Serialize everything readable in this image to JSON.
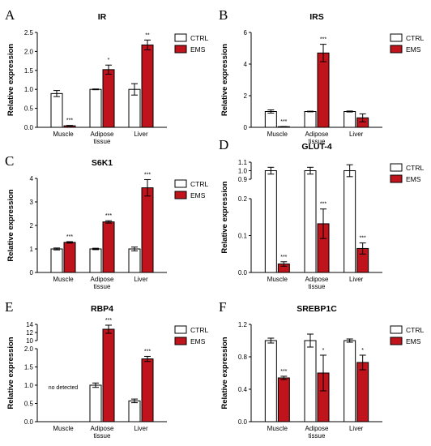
{
  "colors": {
    "ctrl": "#ffffff",
    "ems": "#c0141c",
    "axis": "#000000"
  },
  "chart_data": [
    {
      "panel": "A",
      "title": "IR",
      "type": "bar",
      "ylabel": "Relative expression",
      "categories": [
        "Muscle",
        "Adipose tissue",
        "Liver"
      ],
      "ylim": [
        0,
        2.5
      ],
      "yticks": [
        "0.0",
        "0.5",
        "1.0",
        "1.5",
        "2.0",
        "2.5"
      ],
      "legend": [
        "CTRL",
        "EMS"
      ],
      "series": [
        {
          "name": "CTRL",
          "values": [
            0.89,
            1.0,
            1.0
          ],
          "err": [
            0.08,
            0.01,
            0.15
          ]
        },
        {
          "name": "EMS",
          "values": [
            0.04,
            1.52,
            2.17
          ],
          "err": [
            0.01,
            0.12,
            0.13
          ]
        }
      ],
      "significance": [
        "***",
        "*",
        "**"
      ]
    },
    {
      "panel": "B",
      "title": "IRS",
      "type": "bar",
      "ylabel": "Relative expression",
      "categories": [
        "Muscle",
        "Adipose tissue",
        "Liver"
      ],
      "ylim": [
        0,
        6
      ],
      "yticks": [
        "0",
        "2",
        "4",
        "6"
      ],
      "legend": [
        "CTRL",
        "EMS"
      ],
      "series": [
        {
          "name": "CTRL",
          "values": [
            1.0,
            1.0,
            1.0
          ],
          "err": [
            0.1,
            0.02,
            0.03
          ]
        },
        {
          "name": "EMS",
          "values": [
            0.04,
            4.7,
            0.6
          ],
          "err": [
            0.01,
            0.55,
            0.25
          ]
        }
      ],
      "significance": [
        "***",
        "***",
        ""
      ]
    },
    {
      "panel": "C",
      "title": "S6K1",
      "type": "bar",
      "ylabel": "Relative expression",
      "categories": [
        "Muscle",
        "Adipose tissue",
        "Liver"
      ],
      "ylim": [
        0,
        4
      ],
      "yticks": [
        "0",
        "1",
        "2",
        "3",
        "4"
      ],
      "legend": [
        "CTRL",
        "EMS"
      ],
      "series": [
        {
          "name": "CTRL",
          "values": [
            1.0,
            1.0,
            1.0
          ],
          "err": [
            0.04,
            0.03,
            0.08
          ]
        },
        {
          "name": "EMS",
          "values": [
            1.28,
            2.15,
            3.6
          ],
          "err": [
            0.03,
            0.05,
            0.35
          ]
        }
      ],
      "significance": [
        "***",
        "***",
        "***"
      ]
    },
    {
      "panel": "D",
      "title": "GLUT-4",
      "type": "bar",
      "ylabel": "Relative expression",
      "categories": [
        "Muscle",
        "Adipose tissue",
        "Liver"
      ],
      "broken_axis": {
        "lower": [
          0,
          0.2
        ],
        "upper": [
          0.9,
          1.1
        ]
      },
      "yticks_lower": [
        "0.0",
        "0.1",
        "0.2"
      ],
      "yticks_upper": [
        "0.9",
        "1.0",
        "1.1"
      ],
      "legend": [
        "CTRL",
        "EMS"
      ],
      "series": [
        {
          "name": "CTRL",
          "values": [
            1.0,
            1.0,
            1.0
          ],
          "err": [
            0.04,
            0.04,
            0.07
          ]
        },
        {
          "name": "EMS",
          "values": [
            0.023,
            0.132,
            0.065
          ],
          "err": [
            0.006,
            0.04,
            0.015
          ]
        }
      ],
      "significance": [
        "***",
        "***",
        "***"
      ]
    },
    {
      "panel": "E",
      "title": "RBP4",
      "type": "bar",
      "ylabel": "Relative expression",
      "categories": [
        "Muscle",
        "Adipose tissue",
        "Liver"
      ],
      "broken_axis": {
        "lower": [
          0,
          2.0
        ],
        "upper": [
          10,
          14
        ]
      },
      "yticks_lower": [
        "0.0",
        "0.5",
        "1.0",
        "1.5",
        "2.0"
      ],
      "yticks_upper": [
        "10",
        "12",
        "14"
      ],
      "legend": [
        "CTRL",
        "EMS"
      ],
      "series": [
        {
          "name": "CTRL",
          "values": [
            null,
            1.0,
            0.57
          ],
          "err": [
            null,
            0.06,
            0.05
          ]
        },
        {
          "name": "EMS",
          "values": [
            null,
            12.8,
            1.72
          ],
          "err": [
            null,
            1.0,
            0.07
          ]
        }
      ],
      "significance": [
        "",
        "***",
        "***"
      ],
      "annotation": "no detected"
    },
    {
      "panel": "F",
      "title": "SREBP1C",
      "type": "bar",
      "ylabel": "Relative expression",
      "categories": [
        "Muscle",
        "Adipose tissue",
        "Liver"
      ],
      "ylim": [
        0,
        1.2
      ],
      "yticks": [
        "0.0",
        "0.4",
        "0.8",
        "1.2"
      ],
      "legend": [
        "CTRL",
        "EMS"
      ],
      "series": [
        {
          "name": "CTRL",
          "values": [
            1.0,
            1.0,
            1.0
          ],
          "err": [
            0.03,
            0.08,
            0.02
          ]
        },
        {
          "name": "EMS",
          "values": [
            0.54,
            0.6,
            0.73
          ],
          "err": [
            0.02,
            0.22,
            0.09
          ]
        }
      ],
      "significance": [
        "***",
        "*",
        "*"
      ]
    }
  ]
}
